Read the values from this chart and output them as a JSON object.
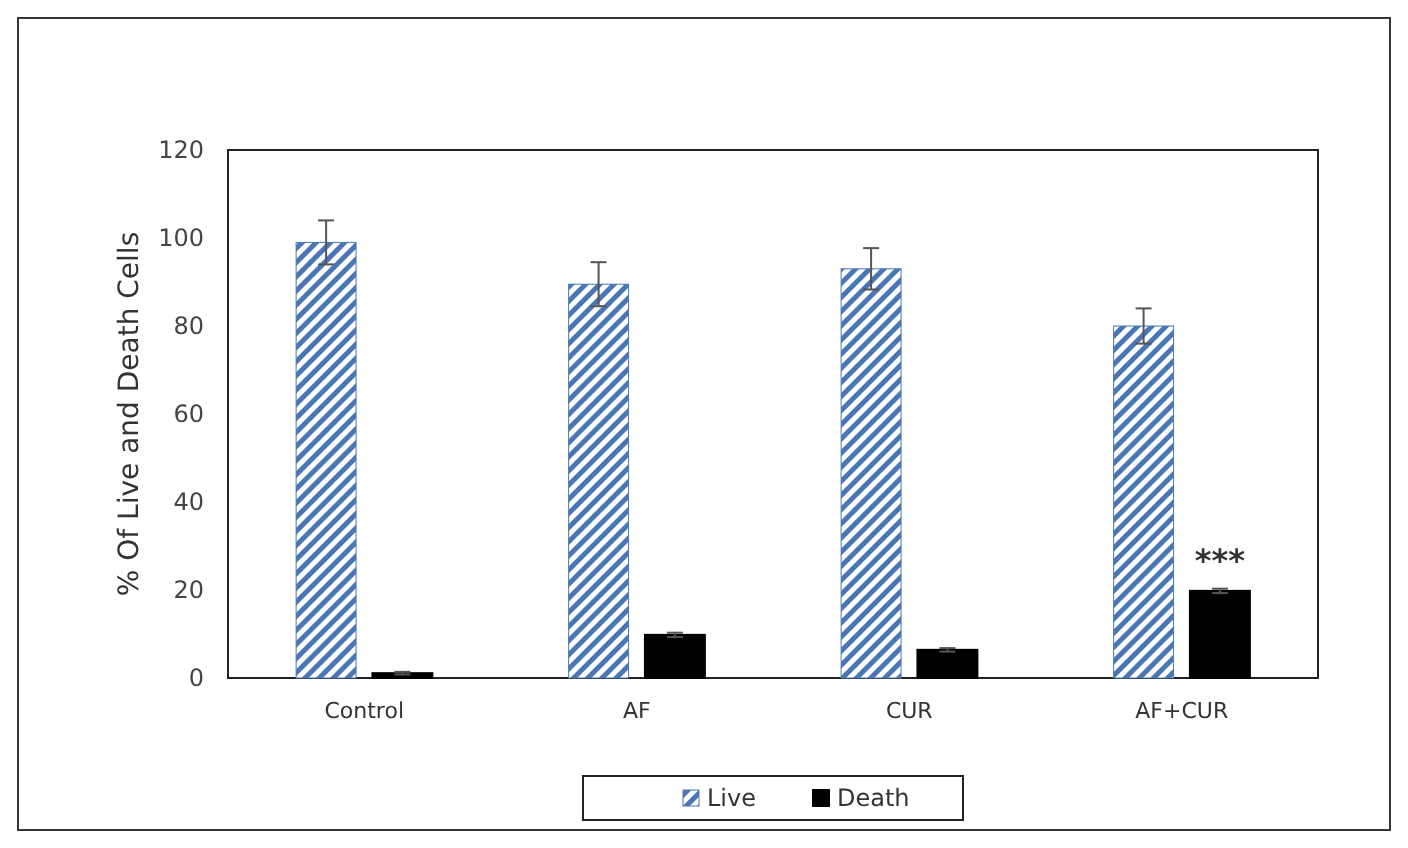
{
  "chart_data": {
    "type": "bar",
    "ylabel": "%  Of Live and Death Cells",
    "categories": [
      "Control",
      "AF",
      "CUR",
      "AF+CUR"
    ],
    "series": [
      {
        "name": "Live",
        "color": "#4a77b4",
        "values": [
          99,
          89.5,
          93,
          80
        ],
        "errors": [
          5,
          5,
          4.7,
          4
        ]
      },
      {
        "name": "Death",
        "color": "#000000",
        "values": [
          1.1,
          9.8,
          6.4,
          19.8
        ],
        "errors": [
          0.3,
          0.5,
          0.4,
          0.5
        ]
      }
    ],
    "ylim": [
      0,
      120
    ],
    "yticks": [
      0,
      20,
      40,
      60,
      80,
      100,
      120
    ],
    "grid": false,
    "legend": "bottom",
    "annotations": [
      {
        "text": "***",
        "x": "AF+CUR",
        "y": 24
      }
    ]
  }
}
